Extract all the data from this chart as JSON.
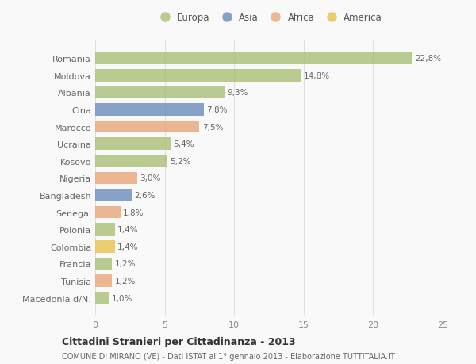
{
  "categories": [
    "Romania",
    "Moldova",
    "Albania",
    "Cina",
    "Marocco",
    "Ucraina",
    "Kosovo",
    "Nigeria",
    "Bangladesh",
    "Senegal",
    "Polonia",
    "Colombia",
    "Francia",
    "Tunisia",
    "Macedonia d/N."
  ],
  "values": [
    22.8,
    14.8,
    9.3,
    7.8,
    7.5,
    5.4,
    5.2,
    3.0,
    2.6,
    1.8,
    1.4,
    1.4,
    1.2,
    1.2,
    1.0
  ],
  "labels": [
    "22,8%",
    "14,8%",
    "9,3%",
    "7,8%",
    "7,5%",
    "5,4%",
    "5,2%",
    "3,0%",
    "2,6%",
    "1,8%",
    "1,4%",
    "1,4%",
    "1,2%",
    "1,2%",
    "1,0%"
  ],
  "colors": [
    "#adc178",
    "#adc178",
    "#adc178",
    "#6e8fbf",
    "#e8a87c",
    "#adc178",
    "#adc178",
    "#e8a87c",
    "#6e8fbf",
    "#e8a87c",
    "#adc178",
    "#e8c44e",
    "#adc178",
    "#e8a87c",
    "#adc178"
  ],
  "legend_labels": [
    "Europa",
    "Asia",
    "Africa",
    "America"
  ],
  "legend_colors": [
    "#adc178",
    "#6e8fbf",
    "#e8a87c",
    "#e8c44e"
  ],
  "title": "Cittadini Stranieri per Cittadinanza - 2013",
  "subtitle": "COMUNE DI MIRANO (VE) - Dati ISTAT al 1° gennaio 2013 - Elaborazione TUTTITALIA.IT",
  "xlim": [
    0,
    25
  ],
  "xticks": [
    0,
    5,
    10,
    15,
    20,
    25
  ],
  "background_color": "#f9f9f9",
  "grid_color": "#e0e0e0",
  "bar_alpha": 0.82,
  "bar_height": 0.72
}
